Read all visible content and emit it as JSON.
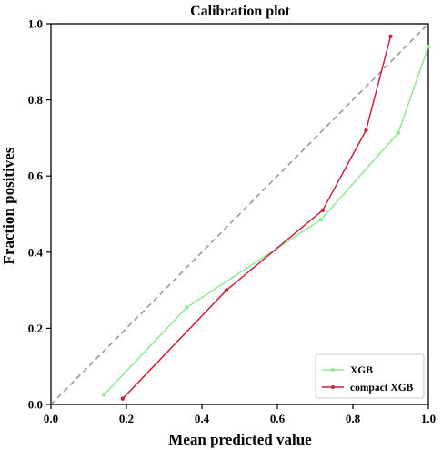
{
  "chart_data": {
    "type": "line",
    "title": "Calibration plot",
    "xlabel": "Mean predicted value",
    "ylabel": "Fraction positives",
    "xlim": [
      0.0,
      1.0
    ],
    "ylim": [
      0.0,
      1.0
    ],
    "xticks": [
      "0.0",
      "0.2",
      "0.4",
      "0.6",
      "0.8",
      "1.0"
    ],
    "yticks": [
      "0.0",
      "0.2",
      "0.4",
      "0.6",
      "0.8",
      "1.0"
    ],
    "grid": false,
    "legend_position": "bottom-right",
    "reference_line": {
      "from": [
        0,
        0
      ],
      "to": [
        1,
        1
      ],
      "style": "dashed",
      "color": "#999999"
    },
    "series": [
      {
        "name": "XGB",
        "color": "#90e890",
        "points": [
          [
            0.14,
            0.025
          ],
          [
            0.36,
            0.255
          ],
          [
            0.715,
            0.485
          ],
          [
            0.92,
            0.713
          ],
          [
            1.0,
            0.94
          ]
        ]
      },
      {
        "name": "compact XGB",
        "color": "#cc1f3c",
        "points": [
          [
            0.19,
            0.015
          ],
          [
            0.465,
            0.3
          ],
          [
            0.72,
            0.51
          ],
          [
            0.835,
            0.72
          ],
          [
            0.9,
            0.967
          ]
        ]
      }
    ]
  }
}
